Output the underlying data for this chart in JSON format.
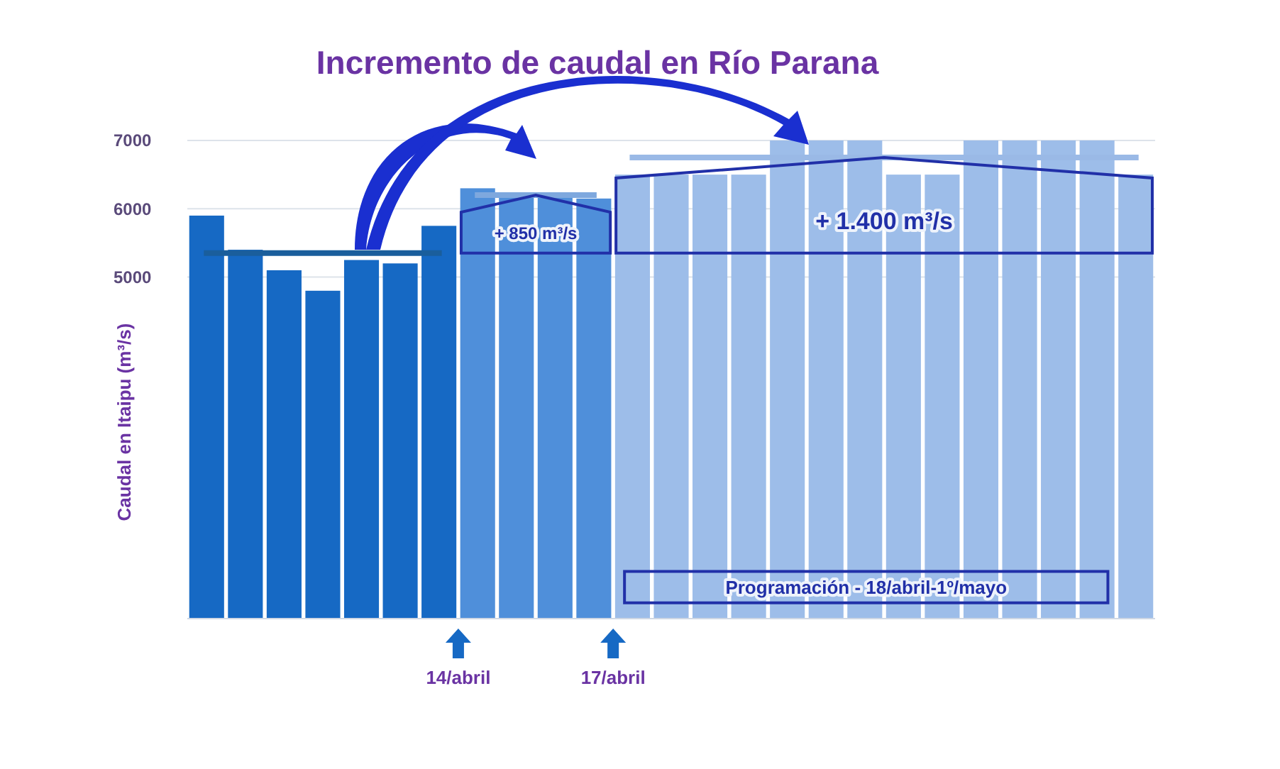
{
  "chart_data": {
    "type": "bar",
    "title": "Incremento de caudal en Río Parana",
    "ylabel": "Caudal en Itaipu (m³/s)",
    "categories": [
      null,
      null,
      null,
      null,
      null,
      null,
      null,
      null,
      null,
      null,
      null,
      null,
      null,
      null,
      null,
      null,
      null,
      null,
      null,
      null,
      null,
      null,
      null,
      null,
      null
    ],
    "series": [
      {
        "values": [
          5900,
          5400,
          5100,
          4800,
          5250,
          5200,
          5750,
          6300,
          6200,
          6200,
          6150,
          6500,
          6500,
          6500,
          6500,
          7000,
          7000,
          7000,
          6500,
          6500,
          7000,
          7000,
          7000,
          7000,
          6500
        ],
        "colors": [
          "#1669c4",
          "#1669c4",
          "#1669c4",
          "#1669c4",
          "#1669c4",
          "#1669c4",
          "#1669c4",
          "#4f8fda",
          "#4f8fda",
          "#4f8fda",
          "#4f8fda",
          "#9dbde9",
          "#9dbde9",
          "#9dbde9",
          "#9dbde9",
          "#9dbde9",
          "#9dbde9",
          "#9dbde9",
          "#9dbde9",
          "#9dbde9",
          "#9dbde9",
          "#9dbde9",
          "#9dbde9",
          "#9dbde9",
          "#9dbde9"
        ]
      },
      {
        "type": "line",
        "color": "#1a5e9c",
        "values": [
          5350,
          5350,
          5350,
          5350,
          5350,
          5350,
          5350,
          null,
          null,
          null,
          null,
          null,
          null,
          null,
          null,
          null,
          null,
          null,
          null,
          null,
          null,
          null,
          null,
          null,
          null
        ]
      },
      {
        "type": "line",
        "color": "#7ea8de",
        "values": [
          null,
          null,
          null,
          null,
          null,
          null,
          null,
          6200,
          6200,
          6200,
          6200,
          null,
          null,
          null,
          null,
          null,
          null,
          null,
          null,
          null,
          null,
          null,
          null,
          null,
          null
        ]
      },
      {
        "type": "line",
        "color": "#9ab9e6",
        "values": [
          null,
          null,
          null,
          null,
          null,
          null,
          null,
          null,
          null,
          null,
          null,
          6750,
          6750,
          6750,
          6750,
          6750,
          6750,
          6750,
          6750,
          6750,
          6750,
          6750,
          6750,
          6750,
          6750
        ]
      }
    ],
    "ylim": [
      0,
      7000
    ],
    "yticks": [
      5000,
      6000,
      7000
    ],
    "grid": "y",
    "annotations": [
      "+ 850 m³/s",
      "+ 1.400 m³/s",
      "Programación - 18/abril-1º/mayo",
      "14/abril",
      "17/abril"
    ]
  }
}
